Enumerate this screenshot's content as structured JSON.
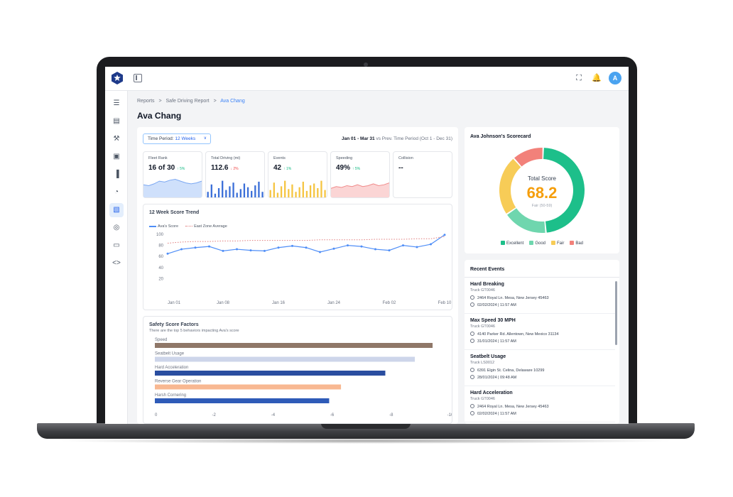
{
  "breadcrumb": {
    "item1": "Reports",
    "item2": "Safe Driving Report",
    "current": "Ava Chang",
    "sep": ">"
  },
  "page_title": "Ava Chang",
  "topbar": {
    "avatar_initial": "A"
  },
  "filter": {
    "period_label": "Time Period:",
    "period_value": "12 Weeks",
    "range": "Jan 01 - Mar 31",
    "compare": "vs Prev. Time Period (Oct 1 - Dec 31)"
  },
  "kpis": [
    {
      "label": "Fleet Rank",
      "value": "16 of 30",
      "delta": "↑ 5%",
      "delta_dir": "up",
      "chart": "area-blue"
    },
    {
      "label": "Total Driving (mi)",
      "value": "112.6",
      "delta": "↓ 2%",
      "delta_dir": "down",
      "chart": "bars-blue"
    },
    {
      "label": "Events",
      "value": "42",
      "delta": "↑ 1%",
      "delta_dir": "up",
      "chart": "bars-yellow"
    },
    {
      "label": "Speeding",
      "value": "49%",
      "delta": "↑ 5%",
      "delta_dir": "up",
      "chart": "area-red"
    },
    {
      "label": "Collision",
      "value": "--",
      "delta": "",
      "delta_dir": "",
      "chart": "none"
    }
  ],
  "trend": {
    "title": "12 Week Score Trend",
    "legend_a": "Ava's Score",
    "legend_b": "East Zone Average"
  },
  "factors": {
    "title": "Safety Score Factors",
    "subtitle": "There are the top 5 behaviors impacting Ava's score"
  },
  "chart_data": [
    {
      "type": "line",
      "title": "12 Week Score Trend",
      "x": [
        "Jan 01",
        "",
        "",
        "",
        "Jan 08",
        "",
        "",
        "",
        "Jan 16",
        "",
        "",
        "",
        "Jan 24",
        "",
        "",
        "",
        "Feb 02",
        "",
        "",
        "",
        "Feb 10"
      ],
      "x_ticks": [
        "Jan 01",
        "Jan 08",
        "Jan 16",
        "Jan 24",
        "Feb 02",
        "Feb 10"
      ],
      "series": [
        {
          "name": "Ava's Score",
          "color": "#4f8ef7",
          "values": [
            65,
            73,
            76,
            78,
            70,
            73,
            71,
            70,
            76,
            79,
            76,
            68,
            74,
            80,
            78,
            73,
            71,
            80,
            77,
            82,
            99
          ]
        },
        {
          "name": "East Zone Average",
          "color": "#e07b7b",
          "dashed": true,
          "values": [
            84,
            86,
            87,
            87,
            88,
            88,
            89,
            89,
            89,
            89,
            89,
            90,
            90,
            90,
            90,
            91,
            91,
            91,
            92,
            92,
            96
          ]
        }
      ],
      "ylim": [
        0,
        100
      ],
      "y_ticks": [
        20,
        40,
        60,
        80,
        100
      ],
      "grid": false
    },
    {
      "type": "bar",
      "orientation": "horizontal",
      "title": "Safety Score Factors",
      "categories": [
        "Speed",
        "Seatbelt Usage",
        "Hard Acceleration",
        "Reverse Gear Operation",
        "Harsh Cornering"
      ],
      "values": [
        -9.4,
        -8.8,
        -7.8,
        -6.3,
        -5.9
      ],
      "colors": [
        "#8f7768",
        "#cdd5ea",
        "#2a4ea0",
        "#f8b892",
        "#2e5bb8"
      ],
      "xlim": [
        0,
        -10
      ],
      "x_ticks": [
        "0",
        "-2",
        "-4",
        "-6",
        "-8",
        "-10"
      ]
    },
    {
      "type": "pie",
      "title": "Ava Johnson's Scorecard",
      "donut": true,
      "categories": [
        "Excellent",
        "Good",
        "Fair",
        "Bad"
      ],
      "values": [
        48,
        17,
        23,
        12
      ],
      "colors": [
        "#1dbf8a",
        "#6fd6ae",
        "#f7cc57",
        "#f2817a"
      ]
    }
  ],
  "kpi_sparks": {
    "fleet_rank": [
      14,
      13,
      15,
      18,
      17,
      19,
      20,
      18,
      16,
      15,
      16,
      18
    ],
    "total_driving": [
      6,
      14,
      4,
      10,
      18,
      8,
      12,
      16,
      5,
      9,
      15,
      11,
      7,
      13,
      17,
      6
    ],
    "events": [
      8,
      16,
      5,
      12,
      18,
      9,
      14,
      6,
      11,
      17,
      7,
      13,
      15,
      10,
      18,
      8
    ],
    "speeding": [
      10,
      12,
      11,
      13,
      12,
      14,
      12,
      13,
      15,
      13,
      14,
      16
    ]
  },
  "scorecard": {
    "title": "Ava Johnson's Scorecard",
    "total_label": "Total Score",
    "total_value": "68.2",
    "sub": "Fair (50-59)",
    "legend": [
      "Excellent",
      "Good",
      "Fair",
      "Bad"
    ]
  },
  "events": {
    "title": "Recent Events",
    "items": [
      {
        "title": "Hard Breaking",
        "truck": "Truck GT0046",
        "address": "2464 Royal Ln. Mesa, New Jersey 45463",
        "time": "02/02/2024 | 11:57 AM"
      },
      {
        "title": "Max Speed 30 MPH",
        "truck": "Truck GT0046",
        "address": "4140 Parker Rd. Allentown, New Mexico 31134",
        "time": "31/01/2024 | 11:57 AM"
      },
      {
        "title": "Seatbelt Usage",
        "truck": "Truck LS0012",
        "address": "6391 Elgin St. Celina, Delaware 10299",
        "time": "28/01/2024 | 09:48 AM"
      },
      {
        "title": "Hard Acceleration",
        "truck": "Truck GT0046",
        "address": "2464 Royal Ln. Mesa, New Jersey 45463",
        "time": "02/02/2024 | 11:57 AM"
      }
    ]
  }
}
